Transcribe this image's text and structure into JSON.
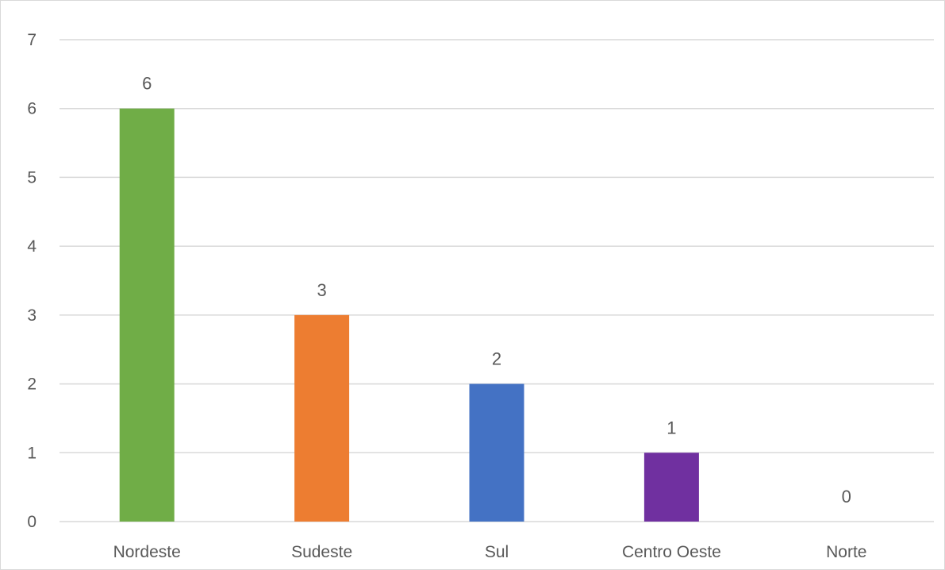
{
  "chart_data": {
    "type": "bar",
    "title": "",
    "xlabel": "",
    "ylabel": "",
    "categories": [
      "Nordeste",
      "Sudeste",
      "Sul",
      "Centro Oeste",
      "Norte"
    ],
    "values": [
      6,
      3,
      2,
      1,
      0
    ],
    "colors": [
      "#70ad47",
      "#ed7d31",
      "#4472c4",
      "#7030a0",
      "#a5a5a5"
    ],
    "ylim": [
      0,
      7
    ],
    "yticks": [
      0,
      1,
      2,
      3,
      4,
      5,
      6,
      7
    ],
    "grid": true,
    "data_labels": true,
    "legend": "none"
  }
}
